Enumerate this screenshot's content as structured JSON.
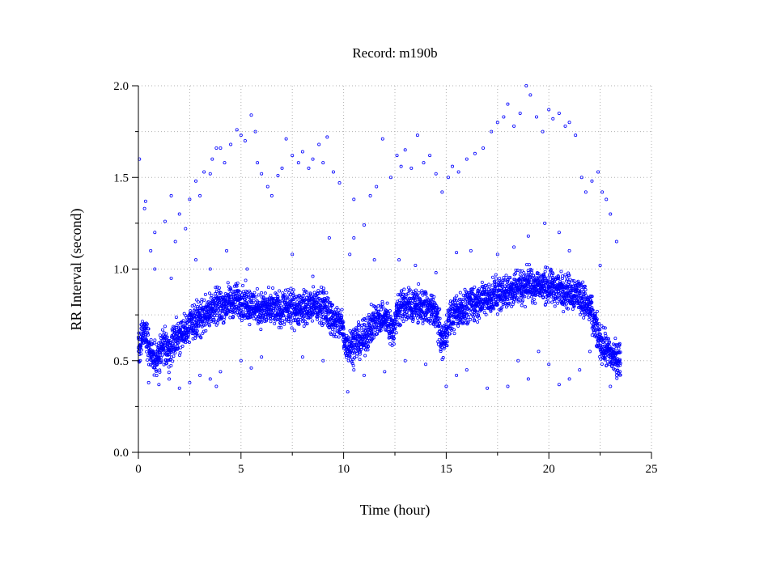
{
  "chart_data": {
    "type": "scatter",
    "title": "Record:  m190b",
    "xlabel": "Time (hour)",
    "ylabel": "RR Interval (second)",
    "xlim": [
      0,
      25
    ],
    "ylim": [
      0,
      2.0
    ],
    "xticks": [
      "0",
      "5",
      "10",
      "15",
      "20",
      "25"
    ],
    "yticks": [
      "0.0",
      "0.5",
      "1.0",
      "1.5",
      "2.0"
    ],
    "grid": true,
    "marker": "hollow-circle",
    "series_color": "#0000ff",
    "trend": [
      [
        0.0,
        0.55
      ],
      [
        0.3,
        0.68
      ],
      [
        0.6,
        0.55
      ],
      [
        0.9,
        0.5
      ],
      [
        1.2,
        0.6
      ],
      [
        1.5,
        0.55
      ],
      [
        1.8,
        0.62
      ],
      [
        2.2,
        0.64
      ],
      [
        2.5,
        0.7
      ],
      [
        3.0,
        0.74
      ],
      [
        3.5,
        0.78
      ],
      [
        4.0,
        0.8
      ],
      [
        4.5,
        0.82
      ],
      [
        5.0,
        0.83
      ],
      [
        5.5,
        0.8
      ],
      [
        6.0,
        0.78
      ],
      [
        7.0,
        0.78
      ],
      [
        8.0,
        0.79
      ],
      [
        9.0,
        0.8
      ],
      [
        9.5,
        0.72
      ],
      [
        9.9,
        0.7
      ],
      [
        10.1,
        0.58
      ],
      [
        10.5,
        0.6
      ],
      [
        11.0,
        0.62
      ],
      [
        11.5,
        0.72
      ],
      [
        12.0,
        0.74
      ],
      [
        12.4,
        0.66
      ],
      [
        12.7,
        0.8
      ],
      [
        13.5,
        0.8
      ],
      [
        14.0,
        0.79
      ],
      [
        14.5,
        0.76
      ],
      [
        14.8,
        0.6
      ],
      [
        15.2,
        0.74
      ],
      [
        16.0,
        0.8
      ],
      [
        17.0,
        0.84
      ],
      [
        18.0,
        0.88
      ],
      [
        19.0,
        0.92
      ],
      [
        20.0,
        0.9
      ],
      [
        21.0,
        0.88
      ],
      [
        21.5,
        0.86
      ],
      [
        22.0,
        0.78
      ],
      [
        22.5,
        0.6
      ],
      [
        23.0,
        0.53
      ],
      [
        23.5,
        0.5
      ]
    ],
    "points": [
      [
        0.05,
        1.6
      ],
      [
        0.3,
        1.33
      ],
      [
        0.35,
        1.37
      ],
      [
        0.6,
        1.1
      ],
      [
        0.8,
        1.2
      ],
      [
        1.3,
        1.26
      ],
      [
        1.6,
        1.4
      ],
      [
        1.8,
        1.15
      ],
      [
        2.0,
        1.3
      ],
      [
        2.3,
        1.22
      ],
      [
        2.5,
        1.38
      ],
      [
        2.8,
        1.48
      ],
      [
        3.0,
        1.4
      ],
      [
        3.2,
        1.53
      ],
      [
        3.5,
        1.52
      ],
      [
        3.6,
        1.6
      ],
      [
        3.8,
        1.66
      ],
      [
        4.0,
        1.66
      ],
      [
        4.2,
        1.58
      ],
      [
        4.5,
        1.68
      ],
      [
        4.8,
        1.76
      ],
      [
        5.0,
        1.73
      ],
      [
        5.2,
        1.7
      ],
      [
        5.5,
        1.84
      ],
      [
        5.7,
        1.75
      ],
      [
        5.8,
        1.58
      ],
      [
        6.0,
        1.52
      ],
      [
        6.3,
        1.45
      ],
      [
        6.5,
        1.4
      ],
      [
        6.8,
        1.51
      ],
      [
        7.0,
        1.55
      ],
      [
        7.2,
        1.71
      ],
      [
        7.5,
        1.62
      ],
      [
        7.8,
        1.58
      ],
      [
        8.0,
        1.64
      ],
      [
        8.3,
        1.55
      ],
      [
        8.5,
        1.6
      ],
      [
        8.8,
        1.68
      ],
      [
        9.0,
        1.58
      ],
      [
        9.2,
        1.72
      ],
      [
        9.5,
        1.53
      ],
      [
        9.8,
        1.47
      ],
      [
        10.3,
        1.08
      ],
      [
        10.5,
        1.38
      ],
      [
        11.0,
        1.24
      ],
      [
        11.3,
        1.4
      ],
      [
        11.6,
        1.45
      ],
      [
        11.9,
        1.71
      ],
      [
        12.3,
        1.5
      ],
      [
        12.6,
        1.62
      ],
      [
        12.8,
        1.56
      ],
      [
        13.0,
        1.65
      ],
      [
        13.3,
        1.55
      ],
      [
        13.6,
        1.73
      ],
      [
        13.9,
        1.58
      ],
      [
        14.2,
        1.62
      ],
      [
        14.5,
        1.52
      ],
      [
        14.8,
        1.42
      ],
      [
        15.1,
        1.5
      ],
      [
        15.3,
        1.56
      ],
      [
        15.6,
        1.53
      ],
      [
        16.0,
        1.6
      ],
      [
        16.4,
        1.63
      ],
      [
        16.8,
        1.66
      ],
      [
        17.2,
        1.75
      ],
      [
        17.5,
        1.8
      ],
      [
        17.8,
        1.83
      ],
      [
        18.0,
        1.9
      ],
      [
        18.3,
        1.78
      ],
      [
        18.6,
        1.85
      ],
      [
        18.9,
        2.0
      ],
      [
        19.1,
        1.95
      ],
      [
        19.4,
        1.83
      ],
      [
        19.7,
        1.75
      ],
      [
        20.0,
        1.87
      ],
      [
        20.2,
        1.82
      ],
      [
        20.5,
        1.85
      ],
      [
        20.8,
        1.78
      ],
      [
        21.0,
        1.8
      ],
      [
        21.3,
        1.73
      ],
      [
        21.6,
        1.5
      ],
      [
        21.8,
        1.42
      ],
      [
        22.1,
        1.48
      ],
      [
        22.4,
        1.53
      ],
      [
        22.6,
        1.42
      ],
      [
        22.8,
        1.38
      ],
      [
        23.0,
        1.3
      ],
      [
        0.5,
        0.38
      ],
      [
        1.0,
        0.37
      ],
      [
        1.5,
        0.4
      ],
      [
        2.0,
        0.35
      ],
      [
        2.5,
        0.38
      ],
      [
        3.0,
        0.42
      ],
      [
        3.5,
        0.4
      ],
      [
        3.8,
        0.36
      ],
      [
        4.0,
        0.44
      ],
      [
        5.0,
        0.5
      ],
      [
        5.5,
        0.46
      ],
      [
        6.0,
        0.52
      ],
      [
        8.0,
        0.52
      ],
      [
        9.0,
        0.5
      ],
      [
        10.2,
        0.33
      ],
      [
        10.5,
        0.45
      ],
      [
        11.0,
        0.42
      ],
      [
        12.0,
        0.44
      ],
      [
        13.0,
        0.5
      ],
      [
        14.0,
        0.48
      ],
      [
        15.0,
        0.36
      ],
      [
        15.5,
        0.42
      ],
      [
        16.0,
        0.45
      ],
      [
        17.0,
        0.35
      ],
      [
        18.0,
        0.36
      ],
      [
        18.5,
        0.5
      ],
      [
        19.0,
        0.4
      ],
      [
        19.5,
        0.55
      ],
      [
        20.0,
        0.48
      ],
      [
        20.5,
        0.37
      ],
      [
        21.0,
        0.4
      ],
      [
        21.5,
        0.45
      ],
      [
        22.0,
        0.55
      ],
      [
        23.0,
        0.36
      ],
      [
        23.3,
        0.42
      ],
      [
        0.8,
        1.0
      ],
      [
        1.6,
        0.95
      ],
      [
        2.8,
        1.05
      ],
      [
        3.5,
        1.0
      ],
      [
        4.3,
        1.1
      ],
      [
        5.3,
        1.0
      ],
      [
        7.5,
        1.08
      ],
      [
        8.5,
        0.96
      ],
      [
        9.3,
        1.17
      ],
      [
        10.5,
        1.17
      ],
      [
        11.5,
        1.05
      ],
      [
        12.7,
        1.05
      ],
      [
        13.5,
        1.02
      ],
      [
        14.5,
        0.98
      ],
      [
        15.5,
        1.09
      ],
      [
        16.2,
        1.1
      ],
      [
        17.5,
        1.08
      ],
      [
        18.3,
        1.12
      ],
      [
        19.0,
        1.18
      ],
      [
        19.8,
        1.25
      ],
      [
        20.5,
        1.2
      ],
      [
        21.0,
        1.1
      ],
      [
        22.5,
        1.02
      ],
      [
        23.3,
        1.15
      ]
    ]
  }
}
